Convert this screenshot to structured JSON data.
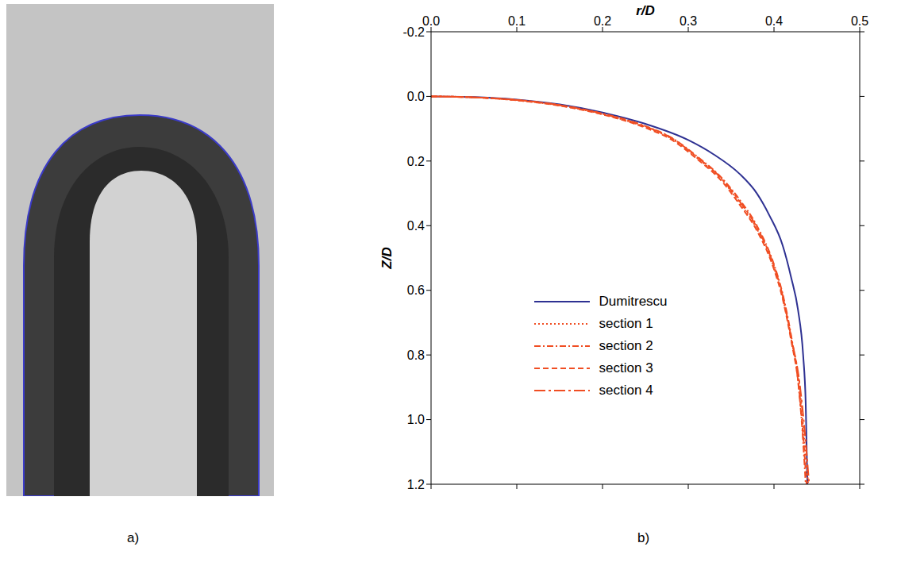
{
  "chart_data": {
    "type": "line",
    "x_label": "r/D",
    "y_label": "Z/D",
    "xlim": [
      0,
      0.5
    ],
    "xticks": [
      {
        "value": 0,
        "label": "0.0"
      },
      0.1,
      0.2,
      0.3,
      0.4,
      0.5
    ],
    "ylim": [
      -0.2,
      1.2
    ],
    "yticks": [
      -0.2,
      {
        "value": 0,
        "label": "0.0"
      },
      0.2,
      0.4,
      0.6,
      0.8,
      {
        "value": 1,
        "label": "1.0"
      },
      1.2
    ],
    "legend": "left",
    "grid": false,
    "series": [
      {
        "name": "Dumitrescu",
        "color": "#2e3192",
        "line_style": "solid",
        "x": [
          0,
          0.05,
          0.1,
          0.15,
          0.2,
          0.25,
          0.3,
          0.33,
          0.36,
          0.38,
          0.395,
          0.41,
          0.42,
          0.428,
          0.434,
          0.437,
          0.439
        ],
        "values": [
          0,
          0.002,
          0.01,
          0.025,
          0.05,
          0.085,
          0.135,
          0.18,
          0.24,
          0.3,
          0.37,
          0.46,
          0.56,
          0.66,
          0.8,
          0.95,
          1.2
        ]
      },
      {
        "name": "section 1",
        "color": "#f04e23",
        "line_style": "dotted",
        "x": [
          0,
          0.05,
          0.1,
          0.15,
          0.2,
          0.25,
          0.28,
          0.31,
          0.34,
          0.36,
          0.38,
          0.4,
          0.41,
          0.42,
          0.43,
          0.435,
          0.44
        ],
        "values": [
          0,
          0.003,
          0.012,
          0.028,
          0.055,
          0.095,
          0.13,
          0.19,
          0.26,
          0.33,
          0.41,
          0.53,
          0.62,
          0.75,
          0.9,
          1.05,
          1.2
        ]
      },
      {
        "name": "section 2",
        "color": "#f04e23",
        "line_style": "dashdot",
        "x": [
          0,
          0.05,
          0.1,
          0.15,
          0.2,
          0.25,
          0.28,
          0.31,
          0.34,
          0.36,
          0.38,
          0.4,
          0.41,
          0.42,
          0.428,
          0.433,
          0.437
        ],
        "values": [
          0,
          0.003,
          0.011,
          0.027,
          0.053,
          0.092,
          0.127,
          0.185,
          0.255,
          0.32,
          0.4,
          0.52,
          0.61,
          0.74,
          0.88,
          1.03,
          1.2
        ]
      },
      {
        "name": "section 3",
        "color": "#f04e23",
        "line_style": "dashed",
        "x": [
          0,
          0.05,
          0.1,
          0.15,
          0.2,
          0.25,
          0.28,
          0.31,
          0.34,
          0.36,
          0.38,
          0.4,
          0.41,
          0.42,
          0.429,
          0.434,
          0.438
        ],
        "values": [
          0,
          0.003,
          0.012,
          0.029,
          0.056,
          0.097,
          0.133,
          0.193,
          0.265,
          0.335,
          0.415,
          0.535,
          0.625,
          0.755,
          0.9,
          1.05,
          1.2
        ]
      },
      {
        "name": "section 4",
        "color": "#f04e23",
        "line_style": "longdashdot",
        "x": [
          0,
          0.05,
          0.1,
          0.15,
          0.2,
          0.25,
          0.28,
          0.31,
          0.34,
          0.36,
          0.38,
          0.4,
          0.41,
          0.42,
          0.43,
          0.436,
          0.441
        ],
        "values": [
          0,
          0.003,
          0.011,
          0.027,
          0.054,
          0.093,
          0.128,
          0.187,
          0.258,
          0.325,
          0.405,
          0.525,
          0.615,
          0.745,
          0.89,
          1.04,
          1.2
        ]
      }
    ]
  },
  "panel_labels": [
    "a)",
    "b)"
  ]
}
